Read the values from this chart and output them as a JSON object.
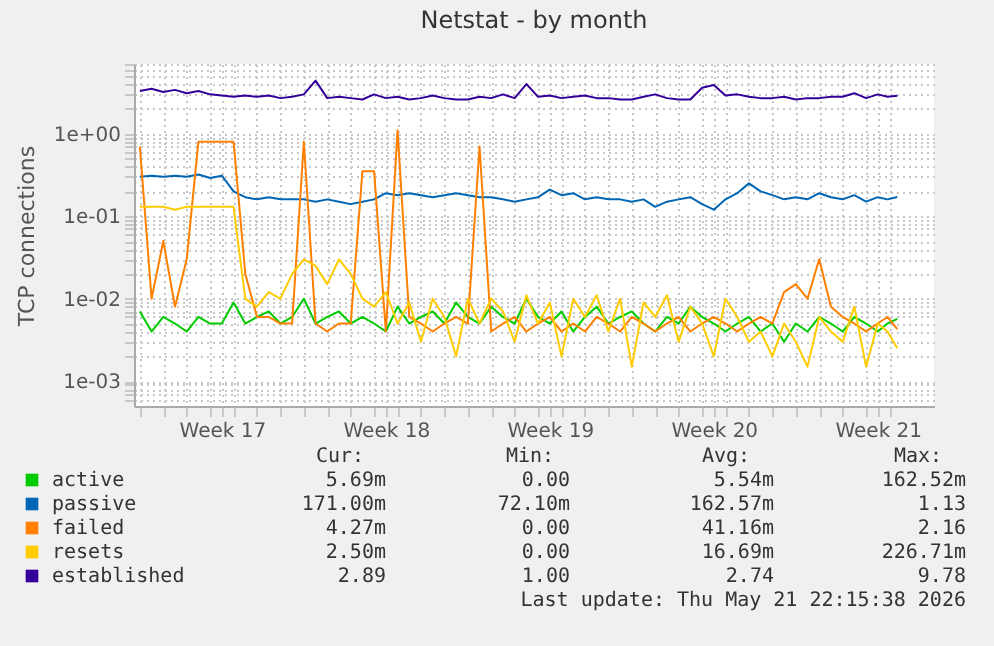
{
  "chart_data": {
    "type": "line",
    "title": "Netstat - by month",
    "ylabel": "TCP connections",
    "log": true,
    "grid": true,
    "legend": "bottom",
    "xlim": [
      "2026-04-19T18:00",
      "2026-05-23T21:36"
    ],
    "xticks": [
      {
        "value": "2026-04-20",
        "label": null
      },
      {
        "value": "2026-04-21",
        "label": null
      },
      {
        "value": "2026-04-22",
        "label": null
      },
      {
        "value": "2026-04-23",
        "label": null
      },
      {
        "value": "2026-04-24",
        "label": null
      },
      {
        "value": "2026-04-25",
        "label": null
      },
      {
        "value": "2026-04-26",
        "label": null
      },
      {
        "value": "2026-04-27",
        "label": null
      },
      {
        "value": "2026-04-28",
        "label": null
      },
      {
        "value": "2026-04-29",
        "label": null
      },
      {
        "value": "2026-04-30",
        "label": null
      },
      {
        "value": "2026-05-01",
        "label": null
      },
      {
        "value": "2026-05-02",
        "label": null
      },
      {
        "value": "2026-05-03",
        "label": null
      },
      {
        "value": "2026-05-04",
        "label": null
      },
      {
        "value": "2026-05-05",
        "label": null
      },
      {
        "value": "2026-05-06",
        "label": null
      },
      {
        "value": "2026-05-07",
        "label": null
      },
      {
        "value": "2026-05-08",
        "label": null
      },
      {
        "value": "2026-05-09",
        "label": null
      },
      {
        "value": "2026-05-10",
        "label": null
      },
      {
        "value": "2026-05-11",
        "label": null
      },
      {
        "value": "2026-05-12",
        "label": null
      },
      {
        "value": "2026-05-13",
        "label": null
      },
      {
        "value": "2026-05-14",
        "label": null
      },
      {
        "value": "2026-05-15",
        "label": null
      },
      {
        "value": "2026-05-16",
        "label": null
      },
      {
        "value": "2026-05-17",
        "label": null
      },
      {
        "value": "2026-05-18",
        "label": null
      },
      {
        "value": "2026-05-19",
        "label": null
      },
      {
        "value": "2026-05-20",
        "label": null
      },
      {
        "value": "2026-05-21",
        "label": null
      },
      {
        "value": "2026-05-22",
        "label": null
      },
      {
        "value": "2026-04-23T12:00",
        "label": "Week 17"
      },
      {
        "value": "2026-04-30T12:00",
        "label": "Week 18"
      },
      {
        "value": "2026-05-07T12:00",
        "label": "Week 19"
      },
      {
        "value": "2026-05-14T12:00",
        "label": "Week 20"
      },
      {
        "value": "2026-05-21T12:00",
        "label": "Week 21"
      }
    ],
    "ylim": [
      0.0005,
      7
    ],
    "yticks": [
      {
        "value": 0.0006,
        "label": null
      },
      {
        "value": 0.0007,
        "label": null
      },
      {
        "value": 0.0008,
        "label": null
      },
      {
        "value": 0.0009,
        "label": null
      },
      {
        "value": 0.001,
        "label": "1e-03"
      },
      {
        "value": 0.002,
        "label": null
      },
      {
        "value": 0.003,
        "label": null
      },
      {
        "value": 0.004,
        "label": null
      },
      {
        "value": 0.005,
        "label": null
      },
      {
        "value": 0.006,
        "label": null
      },
      {
        "value": 0.007,
        "label": null
      },
      {
        "value": 0.008,
        "label": null
      },
      {
        "value": 0.009,
        "label": null
      },
      {
        "value": 0.01,
        "label": "1e-02"
      },
      {
        "value": 0.02,
        "label": null
      },
      {
        "value": 0.03,
        "label": null
      },
      {
        "value": 0.04,
        "label": null
      },
      {
        "value": 0.05,
        "label": null
      },
      {
        "value": 0.06,
        "label": null
      },
      {
        "value": 0.07,
        "label": null
      },
      {
        "value": 0.08,
        "label": null
      },
      {
        "value": 0.09,
        "label": null
      },
      {
        "value": 0.1,
        "label": "1e-01"
      },
      {
        "value": 0.2,
        "label": null
      },
      {
        "value": 0.3,
        "label": null
      },
      {
        "value": 0.4,
        "label": null
      },
      {
        "value": 0.5,
        "label": null
      },
      {
        "value": 0.6,
        "label": null
      },
      {
        "value": 0.7,
        "label": null
      },
      {
        "value": 0.8,
        "label": null
      },
      {
        "value": 0.9,
        "label": null
      },
      {
        "value": 1,
        "label": "1e+00"
      },
      {
        "value": 2,
        "label": null
      },
      {
        "value": 3,
        "label": null
      },
      {
        "value": 4,
        "label": null
      },
      {
        "value": 5,
        "label": null
      },
      {
        "value": 6,
        "label": null
      },
      {
        "value": 7,
        "label": null
      }
    ],
    "x": [
      "2026-04-20T00:00",
      "2026-04-20T12:00",
      "2026-04-21T00:00",
      "2026-04-21T12:00",
      "2026-04-22T00:00",
      "2026-04-22T12:00",
      "2026-04-23T00:00",
      "2026-04-23T12:00",
      "2026-04-24T00:00",
      "2026-04-24T12:00",
      "2026-04-25T00:00",
      "2026-04-25T12:00",
      "2026-04-26T00:00",
      "2026-04-26T12:00",
      "2026-04-27T00:00",
      "2026-04-27T12:00",
      "2026-04-28T00:00",
      "2026-04-28T12:00",
      "2026-04-29T00:00",
      "2026-04-29T12:00",
      "2026-04-30T00:00",
      "2026-04-30T12:00",
      "2026-05-01T00:00",
      "2026-05-01T12:00",
      "2026-05-02T00:00",
      "2026-05-02T12:00",
      "2026-05-03T00:00",
      "2026-05-03T12:00",
      "2026-05-04T00:00",
      "2026-05-04T12:00",
      "2026-05-05T00:00",
      "2026-05-05T12:00",
      "2026-05-06T00:00",
      "2026-05-06T12:00",
      "2026-05-07T00:00",
      "2026-05-07T12:00",
      "2026-05-08T00:00",
      "2026-05-08T12:00",
      "2026-05-09T00:00",
      "2026-05-09T12:00",
      "2026-05-10T00:00",
      "2026-05-10T12:00",
      "2026-05-11T00:00",
      "2026-05-11T12:00",
      "2026-05-12T00:00",
      "2026-05-12T12:00",
      "2026-05-13T00:00",
      "2026-05-13T12:00",
      "2026-05-14T00:00",
      "2026-05-14T12:00",
      "2026-05-15T00:00",
      "2026-05-15T12:00",
      "2026-05-16T00:00",
      "2026-05-16T12:00",
      "2026-05-17T00:00",
      "2026-05-17T12:00",
      "2026-05-18T00:00",
      "2026-05-18T12:00",
      "2026-05-19T00:00",
      "2026-05-19T12:00",
      "2026-05-20T00:00",
      "2026-05-20T12:00",
      "2026-05-21T00:00",
      "2026-05-21T12:00",
      "2026-05-21T22:00",
      "2026-05-22T08:00"
    ],
    "series": [
      {
        "name": "active",
        "color": "#00cc00",
        "values": [
          0.007,
          0.004,
          0.006,
          0.005,
          0.004,
          0.006,
          0.005,
          0.005,
          0.009,
          0.005,
          0.006,
          0.007,
          0.005,
          0.006,
          0.01,
          0.005,
          0.006,
          0.007,
          0.005,
          0.006,
          0.005,
          0.004,
          0.008,
          0.005,
          0.006,
          0.007,
          0.005,
          0.009,
          0.006,
          0.005,
          0.008,
          0.006,
          0.005,
          0.01,
          0.006,
          0.005,
          0.007,
          0.004,
          0.006,
          0.008,
          0.005,
          0.006,
          0.007,
          0.005,
          0.004,
          0.006,
          0.005,
          0.008,
          0.006,
          0.005,
          0.004,
          0.005,
          0.006,
          0.004,
          0.005,
          0.003,
          0.005,
          0.004,
          0.006,
          0.005,
          0.004,
          0.006,
          0.005,
          0.004,
          0.005,
          0.00569
        ]
      },
      {
        "name": "passive",
        "color": "#0066b3",
        "values": [
          0.3,
          0.31,
          0.3,
          0.31,
          0.3,
          0.32,
          0.29,
          0.31,
          0.2,
          0.17,
          0.16,
          0.17,
          0.16,
          0.16,
          0.16,
          0.15,
          0.16,
          0.15,
          0.14,
          0.15,
          0.16,
          0.19,
          0.18,
          0.19,
          0.18,
          0.17,
          0.18,
          0.19,
          0.18,
          0.17,
          0.17,
          0.16,
          0.15,
          0.16,
          0.17,
          0.21,
          0.18,
          0.19,
          0.16,
          0.17,
          0.16,
          0.16,
          0.15,
          0.16,
          0.13,
          0.15,
          0.16,
          0.17,
          0.14,
          0.12,
          0.16,
          0.19,
          0.25,
          0.2,
          0.18,
          0.16,
          0.17,
          0.16,
          0.19,
          0.17,
          0.16,
          0.18,
          0.15,
          0.17,
          0.16,
          0.171
        ]
      },
      {
        "name": "failed",
        "color": "#ff8000",
        "values": [
          0.7,
          0.01,
          0.05,
          0.008,
          0.03,
          0.8,
          0.8,
          0.8,
          0.8,
          0.02,
          0.006,
          0.006,
          0.005,
          0.005,
          0.8,
          0.005,
          0.004,
          0.005,
          0.005,
          0.35,
          0.35,
          0.004,
          1.1,
          0.006,
          0.005,
          0.004,
          0.005,
          0.006,
          0.005,
          0.7,
          0.004,
          0.005,
          0.006,
          0.004,
          0.005,
          0.006,
          0.004,
          0.005,
          0.004,
          0.006,
          0.005,
          0.004,
          0.006,
          0.005,
          0.004,
          0.005,
          0.006,
          0.004,
          0.005,
          0.006,
          0.005,
          0.004,
          0.005,
          0.006,
          0.005,
          0.012,
          0.015,
          0.01,
          0.03,
          0.008,
          0.006,
          0.005,
          0.004,
          0.005,
          0.006,
          0.00427
        ]
      },
      {
        "name": "resets",
        "color": "#ffcc00",
        "values": [
          0.13,
          0.13,
          0.13,
          0.12,
          0.13,
          0.13,
          0.13,
          0.13,
          0.13,
          0.01,
          0.008,
          0.012,
          0.01,
          0.02,
          0.03,
          0.025,
          0.015,
          0.03,
          0.02,
          0.01,
          0.008,
          0.012,
          0.005,
          0.009,
          0.003,
          0.01,
          0.006,
          0.002,
          0.01,
          0.005,
          0.01,
          0.007,
          0.003,
          0.011,
          0.005,
          0.009,
          0.002,
          0.01,
          0.006,
          0.011,
          0.004,
          0.01,
          0.0015,
          0.009,
          0.006,
          0.011,
          0.003,
          0.008,
          0.005,
          0.002,
          0.01,
          0.006,
          0.003,
          0.004,
          0.002,
          0.005,
          0.003,
          0.0015,
          0.006,
          0.004,
          0.003,
          0.008,
          0.0015,
          0.005,
          0.004,
          0.0025
        ]
      },
      {
        "name": "established",
        "color": "#330099",
        "values": [
          3.3,
          3.5,
          3.2,
          3.4,
          3.1,
          3.3,
          3.0,
          2.9,
          2.8,
          2.9,
          2.8,
          2.9,
          2.7,
          2.8,
          3.0,
          4.4,
          2.7,
          2.8,
          2.7,
          2.6,
          3.0,
          2.7,
          2.8,
          2.6,
          2.7,
          2.9,
          2.7,
          2.6,
          2.6,
          2.8,
          2.7,
          3.0,
          2.7,
          4.0,
          2.8,
          2.9,
          2.7,
          2.8,
          2.9,
          2.7,
          2.7,
          2.6,
          2.6,
          2.8,
          3.0,
          2.7,
          2.6,
          2.6,
          3.6,
          3.9,
          2.9,
          3.0,
          2.8,
          2.7,
          2.7,
          2.8,
          2.6,
          2.7,
          2.7,
          2.8,
          2.8,
          3.1,
          2.7,
          3.0,
          2.8,
          2.89
        ]
      }
    ],
    "annotations": [
      "Cur:",
      "Min:",
      "Avg:",
      "Max:",
      "5.69m",
      "0.00",
      "5.54m",
      "162.52m",
      "171.00m",
      "72.10m",
      "162.57m",
      "1.13",
      "4.27m",
      "0.00",
      "41.16m",
      "2.16",
      "2.50m",
      "0.00",
      "16.69m",
      "226.71m",
      "2.89",
      "1.00",
      "2.74",
      "9.78",
      "Last update: Thu May 21 22:15:38 2026"
    ]
  }
}
